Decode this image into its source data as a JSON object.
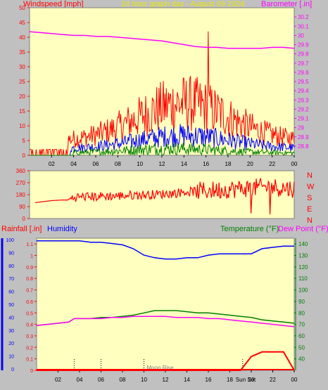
{
  "title": "24 hour graph day - August 09 2024",
  "top": {
    "left_label": "Windspeed [mph]",
    "right_label": "Barometer [.in]",
    "ylim_left": [
      0,
      50
    ],
    "yticks_left": [
      "0",
      "5",
      "10",
      "15",
      "20",
      "25",
      "30",
      "35",
      "40",
      "45",
      "50"
    ],
    "ylim_right": [
      28.7,
      30.3
    ],
    "yticks_right": [
      "28.8",
      "28.9",
      "29",
      "29.1",
      "29.2",
      "29.3",
      "29.4",
      "29.5",
      "29.6",
      "29.7",
      "29.8",
      "29.9",
      "30",
      "30.1",
      "30.2"
    ],
    "xticks": [
      "02",
      "04",
      "06",
      "08",
      "10",
      "12",
      "14",
      "16",
      "18",
      "20",
      "22",
      "00"
    ]
  },
  "mid": {
    "ylim": [
      0,
      360
    ],
    "yticks": [
      "0",
      "90",
      "180",
      "270",
      "360"
    ],
    "compass": [
      "N",
      "W",
      "S",
      "E",
      "N"
    ]
  },
  "bot": {
    "rain_label": "Rainfall [.in]",
    "humidity_label": "Humidity",
    "temp_label": "Temperature (°F)",
    "dew_label": "Dew Point (°F)",
    "yticks_left_outer": [
      "0",
      "10",
      "20",
      "30",
      "40",
      "50",
      "60",
      "70",
      "80",
      "90",
      "100"
    ],
    "yticks_left_inner": [
      "0",
      "0.1",
      "0.2",
      "0.3",
      "0.4",
      "0.5",
      "0.6",
      "0.7",
      "0.8",
      "0.9",
      "1",
      "1.1"
    ],
    "ylim_rain": [
      0,
      1.15
    ],
    "ylim_temp": [
      30,
      145
    ],
    "yticks_right": [
      "40",
      "50",
      "60",
      "70",
      "80",
      "90",
      "100",
      "110",
      "120",
      "130",
      "140"
    ],
    "xticks": [
      "02",
      "04",
      "06",
      "08",
      "10",
      "12",
      "14",
      "16",
      "18",
      "20",
      "22",
      "00"
    ],
    "annotations": [
      "Moon Rise",
      "Sun Set"
    ]
  },
  "colors": {
    "plot_bg": "#ffffc0",
    "wind_gust": "#ff0000",
    "wind_avg": "#0000ff",
    "wind_low": "#008000",
    "barometer": "#ff00ff",
    "direction": "#ff0000",
    "humidity": "#0000ff",
    "temperature": "#008000",
    "dewpoint": "#ff00ff",
    "rainfall": "#ff0000"
  },
  "chart_data": [
    {
      "type": "line",
      "title": "24 hour graph day - August 09 2024",
      "xlabel": "",
      "ylabel": "Windspeed [mph]",
      "ylim": [
        0,
        50
      ],
      "x": [
        0,
        1,
        2,
        3,
        4,
        5,
        6,
        7,
        8,
        9,
        10,
        11,
        12,
        13,
        14,
        15,
        16,
        17,
        18,
        19,
        20,
        21,
        22,
        23,
        24
      ],
      "series": [
        {
          "name": "Barometer [.in]",
          "axis": "right",
          "values": [
            30.04,
            30.03,
            30.02,
            30.01,
            30.0,
            30.0,
            29.99,
            29.99,
            29.98,
            29.97,
            29.96,
            29.95,
            29.94,
            29.92,
            29.9,
            29.88,
            29.87,
            29.87,
            29.86,
            29.86,
            29.86,
            29.86,
            29.87,
            29.87,
            29.86
          ]
        }
      ]
    },
    {
      "type": "scatter",
      "ylabel": "",
      "ylim": [
        0,
        360
      ],
      "x": [
        0.5,
        1,
        2,
        3,
        3.5,
        4,
        5,
        6,
        7,
        8,
        9,
        10,
        11,
        12,
        13,
        14,
        15,
        16,
        17,
        18,
        19,
        20,
        21,
        22,
        23,
        24
      ],
      "series": [
        {
          "name": "",
          "values": [
            120,
            125,
            135,
            140,
            140,
            160,
            165,
            165,
            170,
            170,
            175,
            178,
            180,
            185,
            190,
            200,
            205,
            210,
            215,
            220,
            225,
            230,
            235,
            240,
            230,
            225
          ]
        }
      ]
    },
    {
      "type": "line",
      "ylabel": "Temperature (°F)",
      "ylim": [
        30,
        145
      ],
      "x": [
        0,
        1,
        2,
        3,
        3.5,
        4,
        5,
        6,
        7,
        8,
        9,
        10,
        11,
        12,
        13,
        14,
        15,
        16,
        17,
        18,
        19,
        20,
        21,
        22,
        23,
        24
      ],
      "series": [
        {
          "name": "Humidity",
          "axis": "humidity",
          "values": [
            99,
            99,
            99,
            99,
            99,
            99,
            98,
            98,
            97,
            96,
            93,
            88,
            86,
            85,
            85,
            86,
            86,
            88,
            89,
            89,
            89,
            89,
            93,
            94,
            95,
            95
          ]
        },
        {
          "name": "Temperature (°F)",
          "values": [
            69,
            70,
            71,
            72,
            75,
            75,
            75,
            76,
            76,
            77,
            78,
            80,
            82,
            82,
            82,
            81,
            80,
            80,
            79,
            78,
            77,
            76,
            74,
            73,
            72,
            71
          ]
        },
        {
          "name": "Dew Point (°F)",
          "values": [
            69,
            70,
            71,
            72,
            75,
            75,
            75,
            75,
            76,
            76,
            77,
            77,
            77,
            77,
            76,
            76,
            76,
            75,
            75,
            74,
            73,
            72,
            71,
            70,
            69,
            68
          ]
        },
        {
          "name": "Rainfall [.in]",
          "axis": "rain",
          "values": [
            0,
            0,
            0,
            0,
            0,
            0,
            0,
            0,
            0,
            0,
            0,
            0,
            0,
            0,
            0,
            0,
            0,
            0,
            0,
            0,
            0,
            0.12,
            0.16,
            0.16,
            0.16,
            0
          ]
        }
      ]
    }
  ]
}
